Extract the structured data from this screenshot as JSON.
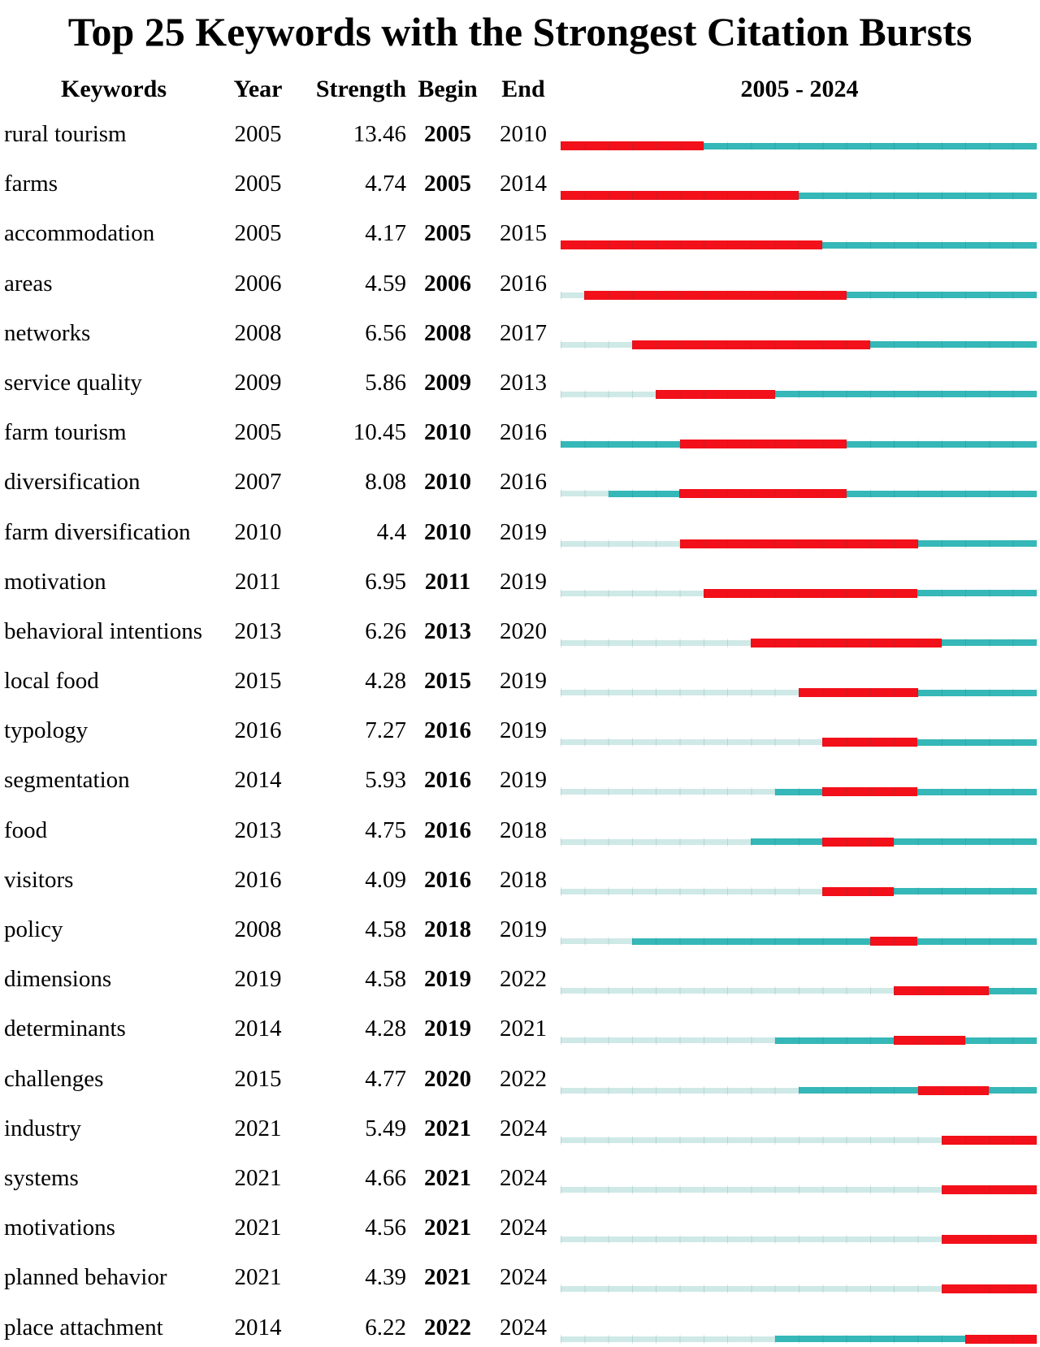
{
  "title": "Top 25 Keywords with the Strongest Citation Bursts",
  "header": {
    "keywords": "Keywords",
    "year": "Year",
    "strength": "Strength",
    "begin": "Begin",
    "end": "End",
    "timeline": "2005 - 2024"
  },
  "colors": {
    "burst_red": "#f2101a",
    "active_teal": "#36b7b8",
    "inactive_light": "#cfe9e7"
  },
  "chart_data": {
    "type": "gantt-burst",
    "title": "Top 25 Keywords with the Strongest Citation Bursts",
    "columns": [
      "Keywords",
      "Year",
      "Strength",
      "Begin",
      "End"
    ],
    "timeline_label": "2005 - 2024",
    "time_range": [
      2005,
      2024
    ],
    "rows": [
      {
        "keyword": "rural tourism",
        "year": 2005,
        "strength": "13.46",
        "begin": 2005,
        "end": 2010
      },
      {
        "keyword": "farms",
        "year": 2005,
        "strength": "4.74",
        "begin": 2005,
        "end": 2014
      },
      {
        "keyword": "accommodation",
        "year": 2005,
        "strength": "4.17",
        "begin": 2005,
        "end": 2015
      },
      {
        "keyword": "areas",
        "year": 2006,
        "strength": "4.59",
        "begin": 2006,
        "end": 2016
      },
      {
        "keyword": "networks",
        "year": 2008,
        "strength": "6.56",
        "begin": 2008,
        "end": 2017
      },
      {
        "keyword": "service quality",
        "year": 2009,
        "strength": "5.86",
        "begin": 2009,
        "end": 2013
      },
      {
        "keyword": "farm tourism",
        "year": 2005,
        "strength": "10.45",
        "begin": 2010,
        "end": 2016
      },
      {
        "keyword": "diversification",
        "year": 2007,
        "strength": "8.08",
        "begin": 2010,
        "end": 2016
      },
      {
        "keyword": "farm diversification",
        "year": 2010,
        "strength": "4.4",
        "begin": 2010,
        "end": 2019
      },
      {
        "keyword": "motivation",
        "year": 2011,
        "strength": "6.95",
        "begin": 2011,
        "end": 2019
      },
      {
        "keyword": "behavioral intentions",
        "year": 2013,
        "strength": "6.26",
        "begin": 2013,
        "end": 2020
      },
      {
        "keyword": "local food",
        "year": 2015,
        "strength": "4.28",
        "begin": 2015,
        "end": 2019
      },
      {
        "keyword": "typology",
        "year": 2016,
        "strength": "7.27",
        "begin": 2016,
        "end": 2019
      },
      {
        "keyword": "segmentation",
        "year": 2014,
        "strength": "5.93",
        "begin": 2016,
        "end": 2019
      },
      {
        "keyword": "food",
        "year": 2013,
        "strength": "4.75",
        "begin": 2016,
        "end": 2018
      },
      {
        "keyword": "visitors",
        "year": 2016,
        "strength": "4.09",
        "begin": 2016,
        "end": 2018
      },
      {
        "keyword": "policy",
        "year": 2008,
        "strength": "4.58",
        "begin": 2018,
        "end": 2019
      },
      {
        "keyword": "dimensions",
        "year": 2019,
        "strength": "4.58",
        "begin": 2019,
        "end": 2022
      },
      {
        "keyword": "determinants",
        "year": 2014,
        "strength": "4.28",
        "begin": 2019,
        "end": 2021
      },
      {
        "keyword": "challenges",
        "year": 2015,
        "strength": "4.77",
        "begin": 2020,
        "end": 2022
      },
      {
        "keyword": "industry",
        "year": 2021,
        "strength": "5.49",
        "begin": 2021,
        "end": 2024
      },
      {
        "keyword": "systems",
        "year": 2021,
        "strength": "4.66",
        "begin": 2021,
        "end": 2024
      },
      {
        "keyword": "motivations",
        "year": 2021,
        "strength": "4.56",
        "begin": 2021,
        "end": 2024
      },
      {
        "keyword": "planned behavior",
        "year": 2021,
        "strength": "4.39",
        "begin": 2021,
        "end": 2024
      },
      {
        "keyword": "place attachment",
        "year": 2014,
        "strength": "6.22",
        "begin": 2022,
        "end": 2024
      }
    ]
  }
}
